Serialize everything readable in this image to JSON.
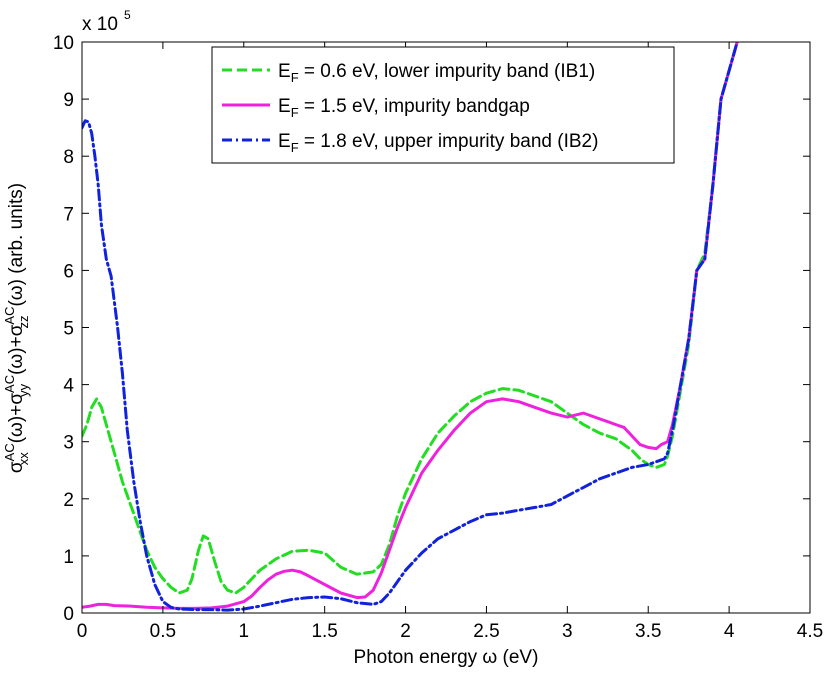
{
  "chart_data": {
    "type": "line",
    "title": "",
    "xlabel": "Photon energy ω (eV)",
    "ylabel_parts": {
      "main": "σ",
      "sub_xx": "xx",
      "sup_ac": "AC",
      "omega": "(ω)+σ",
      "sub_yy": "yy",
      "sub_zz": "zz",
      "tail": "(ω) (arb. units)"
    },
    "y_multiplier": {
      "base": "x 10",
      "exponent": "5"
    },
    "xlim": [
      0,
      4.5
    ],
    "ylim": [
      0,
      10
    ],
    "xticks": [
      0,
      0.5,
      1,
      1.5,
      2,
      2.5,
      3,
      3.5,
      4,
      4.5
    ],
    "xtick_labels": [
      "0",
      "0.5",
      "1",
      "1.5",
      "2",
      "2.5",
      "3",
      "3.5",
      "4",
      "4.5"
    ],
    "yticks": [
      0,
      1,
      2,
      3,
      4,
      5,
      6,
      7,
      8,
      9,
      10
    ],
    "ytick_labels": [
      "0",
      "1",
      "2",
      "3",
      "4",
      "5",
      "6",
      "7",
      "8",
      "9",
      "10"
    ],
    "legend_position": "top-center",
    "series": [
      {
        "name": "E_F = 0.6 eV, lower impurity band (IB1)",
        "legend": {
          "prefix": "E",
          "sub": "F",
          "rest": " = 0.6 eV, lower impurity band (IB1)"
        },
        "color": "#22dd22",
        "style": "dashed",
        "x": [
          0,
          0.03,
          0.06,
          0.09,
          0.12,
          0.15,
          0.2,
          0.25,
          0.3,
          0.35,
          0.4,
          0.45,
          0.5,
          0.55,
          0.6,
          0.65,
          0.68,
          0.72,
          0.75,
          0.78,
          0.82,
          0.86,
          0.9,
          0.95,
          1.0,
          1.05,
          1.1,
          1.2,
          1.3,
          1.4,
          1.5,
          1.6,
          1.7,
          1.8,
          1.85,
          1.9,
          1.95,
          2.0,
          2.1,
          2.2,
          2.3,
          2.4,
          2.5,
          2.6,
          2.7,
          2.8,
          2.9,
          3.0,
          3.1,
          3.2,
          3.3,
          3.4,
          3.45,
          3.5,
          3.55,
          3.6,
          3.62,
          3.65,
          3.7,
          3.75,
          3.8,
          3.85,
          3.9,
          3.95,
          4.0,
          4.05
        ],
        "y": [
          3.1,
          3.3,
          3.6,
          3.75,
          3.6,
          3.3,
          2.8,
          2.3,
          1.9,
          1.5,
          1.1,
          0.8,
          0.6,
          0.45,
          0.35,
          0.4,
          0.6,
          1.1,
          1.35,
          1.3,
          0.9,
          0.55,
          0.4,
          0.35,
          0.45,
          0.6,
          0.75,
          0.95,
          1.08,
          1.1,
          1.05,
          0.8,
          0.68,
          0.72,
          0.85,
          1.2,
          1.7,
          2.1,
          2.7,
          3.15,
          3.45,
          3.7,
          3.85,
          3.93,
          3.9,
          3.8,
          3.7,
          3.5,
          3.3,
          3.15,
          3.05,
          2.85,
          2.7,
          2.6,
          2.55,
          2.6,
          2.75,
          3.1,
          3.9,
          4.7,
          6.0,
          6.3,
          7.5,
          9.0,
          9.5,
          10.0
        ]
      },
      {
        "name": "E_F = 1.5 eV, impurity bandgap",
        "legend": {
          "prefix": "E",
          "sub": "F",
          "rest": " = 1.5 eV, impurity bandgap"
        },
        "color": "#ee22dd",
        "style": "solid",
        "x": [
          0,
          0.05,
          0.1,
          0.15,
          0.2,
          0.3,
          0.4,
          0.5,
          0.6,
          0.7,
          0.8,
          0.9,
          1.0,
          1.05,
          1.1,
          1.15,
          1.2,
          1.25,
          1.3,
          1.35,
          1.4,
          1.5,
          1.6,
          1.7,
          1.75,
          1.8,
          1.85,
          1.9,
          1.95,
          2.0,
          2.1,
          2.2,
          2.3,
          2.4,
          2.5,
          2.6,
          2.7,
          2.8,
          2.9,
          3.0,
          3.1,
          3.15,
          3.2,
          3.25,
          3.3,
          3.35,
          3.4,
          3.45,
          3.5,
          3.55,
          3.58,
          3.62,
          3.65,
          3.7,
          3.75,
          3.8,
          3.85,
          3.9,
          3.95,
          4.0,
          4.05
        ],
        "y": [
          0.1,
          0.12,
          0.15,
          0.15,
          0.13,
          0.12,
          0.1,
          0.09,
          0.08,
          0.08,
          0.09,
          0.12,
          0.2,
          0.3,
          0.45,
          0.58,
          0.68,
          0.73,
          0.75,
          0.72,
          0.65,
          0.5,
          0.35,
          0.27,
          0.28,
          0.4,
          0.7,
          1.1,
          1.5,
          1.85,
          2.45,
          2.85,
          3.2,
          3.5,
          3.7,
          3.75,
          3.7,
          3.6,
          3.5,
          3.43,
          3.5,
          3.45,
          3.4,
          3.35,
          3.3,
          3.25,
          3.1,
          2.95,
          2.9,
          2.88,
          2.95,
          3.0,
          3.3,
          4.0,
          4.8,
          6.0,
          6.2,
          7.5,
          9.0,
          9.5,
          10.0
        ]
      },
      {
        "name": "E_F = 1.8 eV, upper impurity band (IB2)",
        "legend": {
          "prefix": "E",
          "sub": "F",
          "rest": " = 1.8 eV, upper impurity band (IB2)"
        },
        "color": "#1122dd",
        "style": "dashdot",
        "x": [
          0,
          0.02,
          0.04,
          0.06,
          0.08,
          0.1,
          0.12,
          0.15,
          0.18,
          0.22,
          0.25,
          0.28,
          0.32,
          0.36,
          0.4,
          0.45,
          0.5,
          0.55,
          0.6,
          0.7,
          0.8,
          0.9,
          1.0,
          1.1,
          1.2,
          1.3,
          1.4,
          1.5,
          1.6,
          1.7,
          1.8,
          1.85,
          1.9,
          1.95,
          2.0,
          2.1,
          2.2,
          2.3,
          2.4,
          2.5,
          2.6,
          2.7,
          2.8,
          2.9,
          3.0,
          3.1,
          3.2,
          3.3,
          3.4,
          3.5,
          3.55,
          3.6,
          3.62,
          3.65,
          3.7,
          3.75,
          3.8,
          3.85,
          3.9,
          3.95,
          4.0,
          4.05
        ],
        "y": [
          8.5,
          8.62,
          8.6,
          8.4,
          8.0,
          7.5,
          6.8,
          6.2,
          5.9,
          5.0,
          4.2,
          3.2,
          2.3,
          1.6,
          1.0,
          0.5,
          0.2,
          0.1,
          0.07,
          0.06,
          0.06,
          0.05,
          0.07,
          0.12,
          0.18,
          0.24,
          0.27,
          0.28,
          0.25,
          0.18,
          0.15,
          0.2,
          0.35,
          0.55,
          0.75,
          1.05,
          1.3,
          1.45,
          1.6,
          1.72,
          1.75,
          1.8,
          1.85,
          1.9,
          2.05,
          2.2,
          2.35,
          2.45,
          2.55,
          2.6,
          2.65,
          2.7,
          2.8,
          3.2,
          4.0,
          4.8,
          6.0,
          6.2,
          7.5,
          9.0,
          9.5,
          10.0
        ]
      }
    ]
  }
}
